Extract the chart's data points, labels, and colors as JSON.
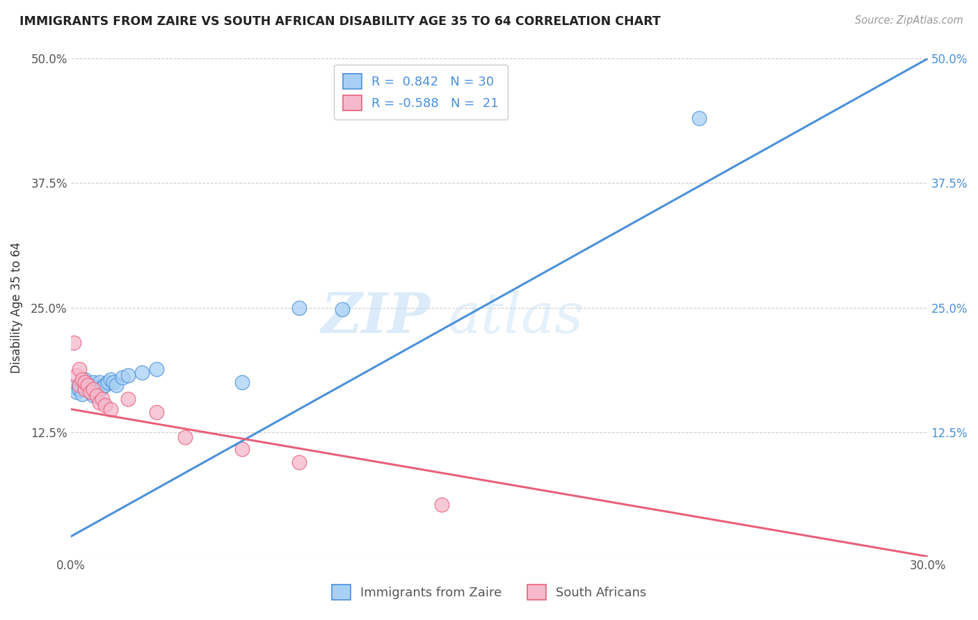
{
  "title": "IMMIGRANTS FROM ZAIRE VS SOUTH AFRICAN DISABILITY AGE 35 TO 64 CORRELATION CHART",
  "source": "Source: ZipAtlas.com",
  "ylabel": "Disability Age 35 to 64",
  "xlim": [
    0.0,
    0.3
  ],
  "ylim": [
    0.0,
    0.5
  ],
  "R_blue": 0.842,
  "N_blue": 30,
  "R_pink": -0.588,
  "N_pink": 21,
  "legend_blue": "Immigrants from Zaire",
  "legend_pink": "South Africans",
  "watermark_zip": "ZIP",
  "watermark_atlas": "atlas",
  "blue_color": "#A8D0F5",
  "pink_color": "#F5B8CC",
  "blue_line_color": "#4A90D9",
  "pink_line_color": "#E8607A",
  "blue_scatter": [
    [
      0.001,
      0.17
    ],
    [
      0.002,
      0.165
    ],
    [
      0.003,
      0.172
    ],
    [
      0.003,
      0.168
    ],
    [
      0.004,
      0.175
    ],
    [
      0.004,
      0.163
    ],
    [
      0.005,
      0.17
    ],
    [
      0.005,
      0.178
    ],
    [
      0.006,
      0.168
    ],
    [
      0.007,
      0.172
    ],
    [
      0.007,
      0.165
    ],
    [
      0.008,
      0.175
    ],
    [
      0.008,
      0.162
    ],
    [
      0.009,
      0.17
    ],
    [
      0.01,
      0.168
    ],
    [
      0.01,
      0.175
    ],
    [
      0.011,
      0.17
    ],
    [
      0.012,
      0.172
    ],
    [
      0.013,
      0.175
    ],
    [
      0.014,
      0.178
    ],
    [
      0.015,
      0.175
    ],
    [
      0.016,
      0.172
    ],
    [
      0.018,
      0.18
    ],
    [
      0.02,
      0.182
    ],
    [
      0.025,
      0.185
    ],
    [
      0.03,
      0.188
    ],
    [
      0.08,
      0.25
    ],
    [
      0.095,
      0.248
    ],
    [
      0.22,
      0.44
    ],
    [
      0.06,
      0.175
    ]
  ],
  "pink_scatter": [
    [
      0.001,
      0.215
    ],
    [
      0.002,
      0.182
    ],
    [
      0.003,
      0.188
    ],
    [
      0.003,
      0.172
    ],
    [
      0.004,
      0.178
    ],
    [
      0.005,
      0.168
    ],
    [
      0.005,
      0.175
    ],
    [
      0.006,
      0.172
    ],
    [
      0.007,
      0.165
    ],
    [
      0.008,
      0.168
    ],
    [
      0.009,
      0.162
    ],
    [
      0.01,
      0.155
    ],
    [
      0.011,
      0.158
    ],
    [
      0.012,
      0.152
    ],
    [
      0.014,
      0.148
    ],
    [
      0.02,
      0.158
    ],
    [
      0.03,
      0.145
    ],
    [
      0.04,
      0.12
    ],
    [
      0.06,
      0.108
    ],
    [
      0.08,
      0.095
    ],
    [
      0.13,
      0.052
    ]
  ],
  "blue_line": [
    [
      0.0,
      0.02
    ],
    [
      0.3,
      0.5
    ]
  ],
  "pink_line": [
    [
      0.0,
      0.148
    ],
    [
      0.3,
      0.0
    ]
  ]
}
